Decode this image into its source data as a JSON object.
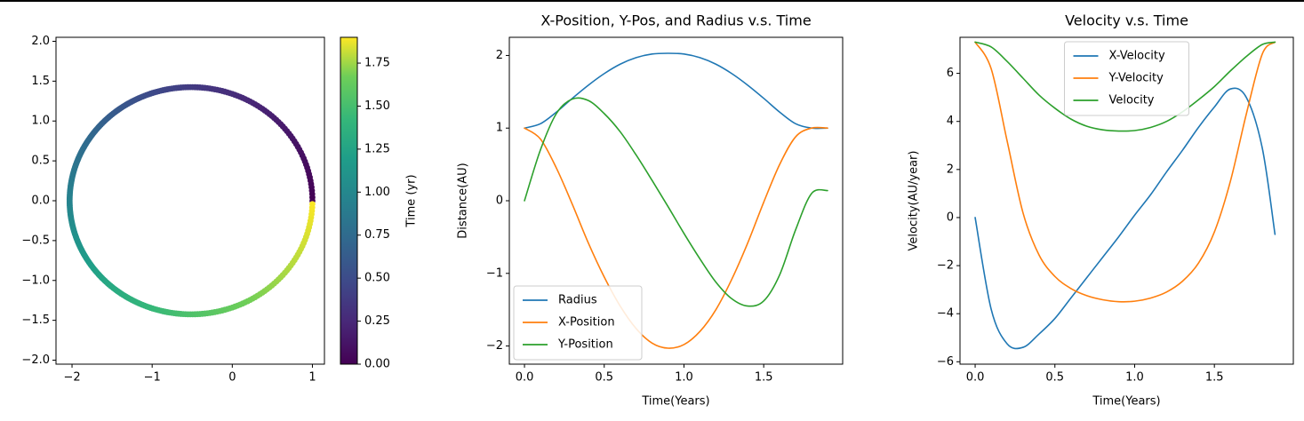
{
  "chart_data": [
    {
      "type": "scatter",
      "title": "",
      "xlabel": "",
      "ylabel": "",
      "xlim": [
        -2.2,
        1.15
      ],
      "ylim": [
        -2.05,
        2.05
      ],
      "xticks": [
        -2,
        -1,
        0,
        1
      ],
      "xtick_labels": [
        "−2",
        "−1",
        "0",
        "1"
      ],
      "yticks": [
        -2.0,
        -1.5,
        -1.0,
        -0.5,
        0.0,
        0.5,
        1.0,
        1.5,
        2.0
      ],
      "ytick_labels": [
        "−2.0",
        "−1.5",
        "−1.0",
        "−0.5",
        "0.0",
        "0.5",
        "1.0",
        "1.5",
        "2.0"
      ],
      "orbit": {
        "semi_major_axis": 1.515,
        "eccentricity": 0.34,
        "period_years": 1.9,
        "start": [
          1.0,
          0.0
        ]
      },
      "colormap": "viridis",
      "colorbar": {
        "label": "Time (yr)",
        "range": [
          0,
          1.9
        ],
        "ticks": [
          0.0,
          0.25,
          0.5,
          0.75,
          1.0,
          1.25,
          1.5,
          1.75
        ],
        "tick_labels": [
          "0.00",
          "0.25",
          "0.50",
          "0.75",
          "1.00",
          "1.25",
          "1.50",
          "1.75"
        ]
      }
    },
    {
      "type": "line",
      "title": "X-Position, Y-Pos, and Radius v.s. Time",
      "xlabel": "Time(Years)",
      "ylabel": "Distance(AU)",
      "xlim": [
        -0.095,
        1.995
      ],
      "ylim": [
        -2.25,
        2.25
      ],
      "xticks": [
        0.0,
        0.5,
        1.0,
        1.5
      ],
      "xtick_labels": [
        "0.0",
        "0.5",
        "1.0",
        "1.5"
      ],
      "yticks": [
        -2,
        -1,
        0,
        1,
        2
      ],
      "ytick_labels": [
        "−2",
        "−1",
        "0",
        "1",
        "2"
      ],
      "legend": "lower-left",
      "series": [
        {
          "name": "Radius",
          "color": "#1f77b4",
          "x": [
            0,
            0.1,
            0.2,
            0.3,
            0.4,
            0.5,
            0.6,
            0.7,
            0.8,
            0.9,
            1.0,
            1.1,
            1.2,
            1.3,
            1.4,
            1.5,
            1.6,
            1.7,
            1.8,
            1.9
          ],
          "y": [
            1.0,
            1.06,
            1.22,
            1.41,
            1.59,
            1.75,
            1.88,
            1.97,
            2.02,
            2.03,
            2.02,
            1.97,
            1.88,
            1.75,
            1.59,
            1.41,
            1.22,
            1.06,
            1.0,
            1.0
          ]
        },
        {
          "name": "X-Position",
          "color": "#ff7f0e",
          "x": [
            0,
            0.1,
            0.2,
            0.3,
            0.4,
            0.5,
            0.6,
            0.7,
            0.8,
            0.9,
            1.0,
            1.1,
            1.2,
            1.3,
            1.4,
            1.5,
            1.6,
            1.7,
            1.8,
            1.9
          ],
          "y": [
            1.0,
            0.85,
            0.45,
            -0.05,
            -0.58,
            -1.05,
            -1.45,
            -1.76,
            -1.96,
            -2.03,
            -1.98,
            -1.8,
            -1.5,
            -1.08,
            -0.58,
            -0.02,
            0.5,
            0.88,
            1.0,
            1.0
          ]
        },
        {
          "name": "Y-Position",
          "color": "#2ca02c",
          "x": [
            0,
            0.1,
            0.2,
            0.3,
            0.4,
            0.5,
            0.6,
            0.7,
            0.8,
            0.9,
            1.0,
            1.1,
            1.2,
            1.3,
            1.4,
            1.5,
            1.6,
            1.7,
            1.8,
            1.9
          ],
          "y": [
            0.0,
            0.7,
            1.2,
            1.4,
            1.38,
            1.2,
            0.95,
            0.63,
            0.28,
            -0.08,
            -0.45,
            -0.8,
            -1.12,
            -1.35,
            -1.45,
            -1.38,
            -1.02,
            -0.4,
            0.1,
            0.14
          ]
        }
      ]
    },
    {
      "type": "line",
      "title": "Velocity v.s. Time",
      "xlabel": "Time(Years)",
      "ylabel": "Velocity(AU/year)",
      "xlim": [
        -0.095,
        1.995
      ],
      "ylim": [
        -6.1,
        7.5
      ],
      "xticks": [
        0.0,
        0.5,
        1.0,
        1.5
      ],
      "xtick_labels": [
        "0.0",
        "0.5",
        "1.0",
        "1.5"
      ],
      "yticks": [
        -6,
        -4,
        -2,
        0,
        2,
        4,
        6
      ],
      "ytick_labels": [
        "−6",
        "−4",
        "−2",
        "0",
        "2",
        "4",
        "6"
      ],
      "legend": "upper-center",
      "series": [
        {
          "name": "X-Velocity",
          "color": "#1f77b4",
          "x": [
            0,
            0.1,
            0.2,
            0.3,
            0.4,
            0.5,
            0.6,
            0.7,
            0.8,
            0.9,
            1.0,
            1.1,
            1.2,
            1.3,
            1.4,
            1.5,
            1.6,
            1.7,
            1.8,
            1.88
          ],
          "y": [
            0.0,
            -3.8,
            -5.25,
            -5.4,
            -4.85,
            -4.2,
            -3.35,
            -2.5,
            -1.65,
            -0.8,
            0.1,
            0.95,
            1.9,
            2.8,
            3.75,
            4.6,
            5.35,
            5.0,
            2.9,
            -0.7
          ]
        },
        {
          "name": "Y-Velocity",
          "color": "#ff7f0e",
          "x": [
            0,
            0.1,
            0.2,
            0.3,
            0.4,
            0.5,
            0.6,
            0.7,
            0.8,
            0.9,
            1.0,
            1.1,
            1.2,
            1.3,
            1.4,
            1.5,
            1.6,
            1.7,
            1.8,
            1.88
          ],
          "y": [
            7.3,
            6.2,
            3.2,
            0.2,
            -1.55,
            -2.45,
            -2.95,
            -3.25,
            -3.42,
            -3.5,
            -3.48,
            -3.35,
            -3.1,
            -2.65,
            -1.9,
            -0.6,
            1.5,
            4.3,
            6.8,
            7.3
          ]
        },
        {
          "name": "Velocity",
          "color": "#2ca02c",
          "x": [
            0,
            0.1,
            0.2,
            0.3,
            0.4,
            0.5,
            0.6,
            0.7,
            0.8,
            0.9,
            1.0,
            1.1,
            1.2,
            1.3,
            1.4,
            1.5,
            1.6,
            1.7,
            1.8,
            1.88
          ],
          "y": [
            7.3,
            7.1,
            6.5,
            5.8,
            5.1,
            4.55,
            4.1,
            3.8,
            3.65,
            3.6,
            3.62,
            3.75,
            4.0,
            4.4,
            4.9,
            5.45,
            6.1,
            6.7,
            7.2,
            7.3
          ]
        }
      ]
    }
  ]
}
